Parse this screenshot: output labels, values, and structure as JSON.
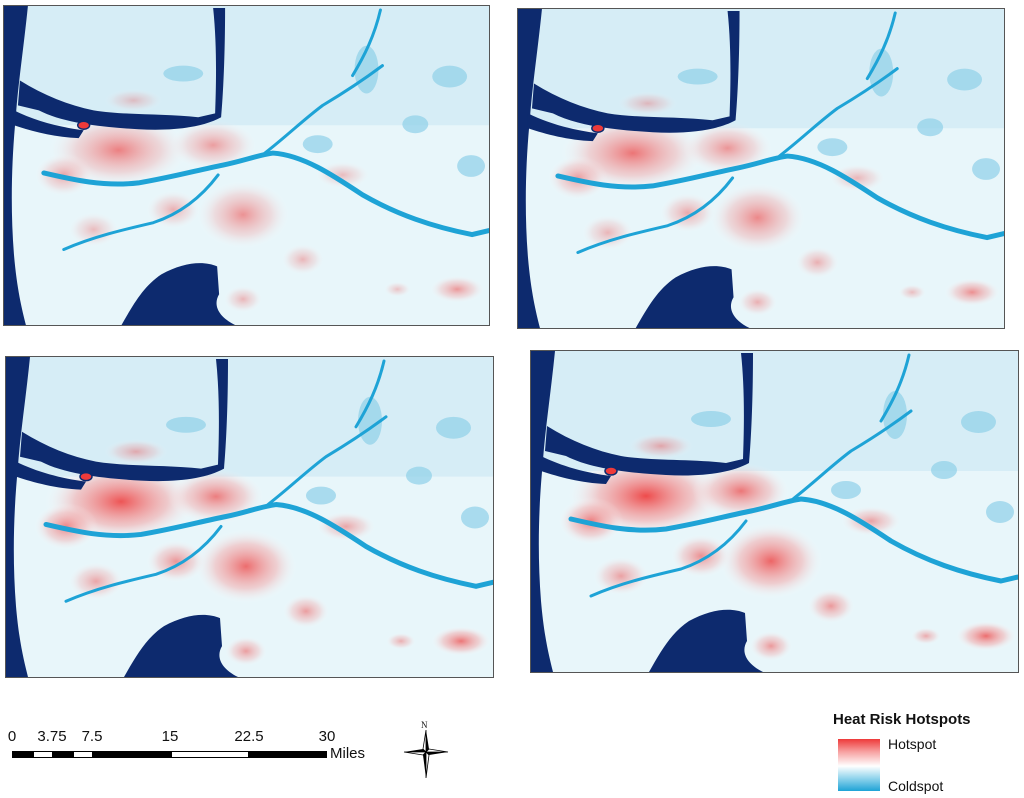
{
  "maps": [
    {
      "panel": "map-panel-1",
      "hotspot_level": 0.62
    },
    {
      "panel": "map-panel-2",
      "hotspot_level": 0.7
    },
    {
      "panel": "map-panel-3",
      "hotspot_level": 0.9
    },
    {
      "panel": "map-panel-4",
      "hotspot_level": 0.95
    }
  ],
  "scale_bar": {
    "ticks": [
      "0",
      "3.75",
      "7.5",
      "15",
      "22.5",
      "30"
    ],
    "units": "Miles"
  },
  "north_arrow": {
    "label": "N",
    "icon": "compass-rose-icon"
  },
  "legend": {
    "title": "Heat Risk Hotspots",
    "high_label": "Hotspot",
    "low_label": "Coldspot",
    "colors": {
      "hot": "#ee3a3a",
      "neutral": "#ffffff",
      "cold": "#1ea3d6",
      "water": "#0d2a6e",
      "land": "#d6edf6"
    }
  }
}
